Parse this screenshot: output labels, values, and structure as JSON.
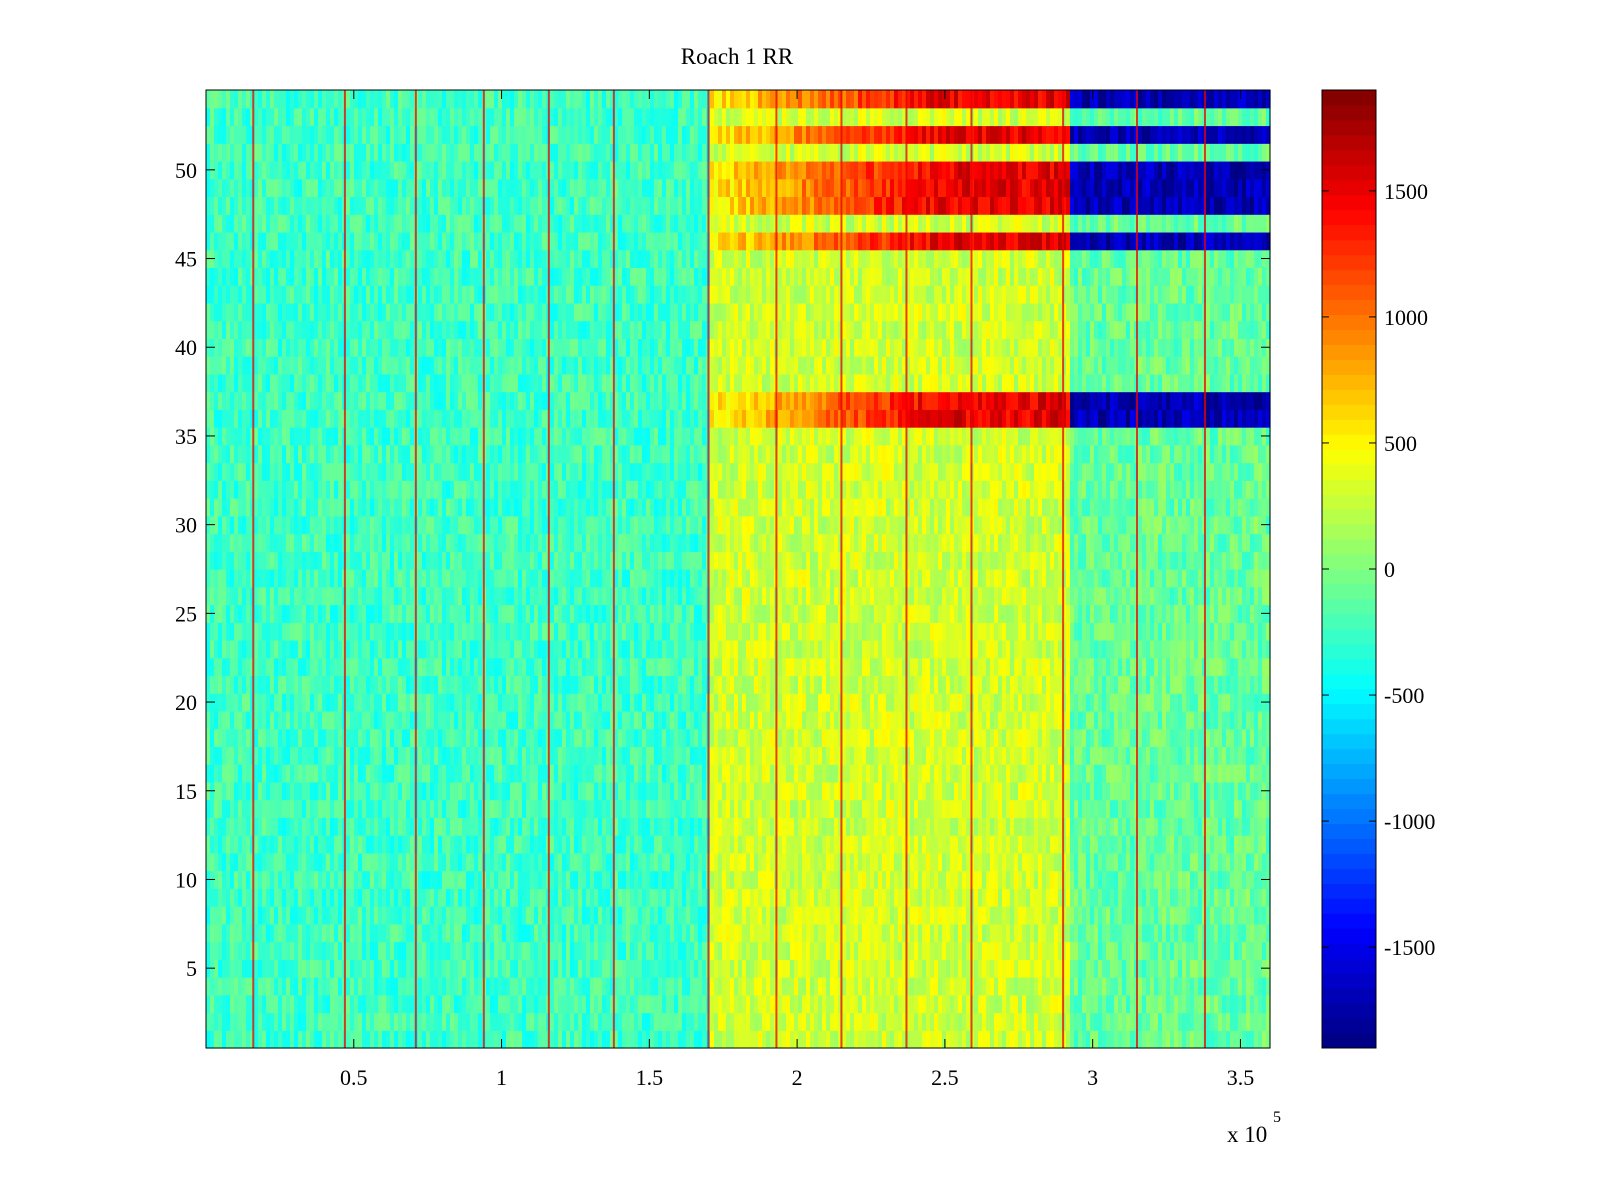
{
  "chart_data": {
    "type": "heatmap",
    "title": "Roach 1 RR",
    "xlabel": "",
    "ylabel": "",
    "x_exponent_label": {
      "base": "x 10",
      "exponent": "5"
    },
    "x_range": [
      0,
      360000
    ],
    "y_range": [
      0.5,
      54.5
    ],
    "colormap": "jet",
    "color_range": [
      -1900,
      1900
    ],
    "colorbar_ticks": [
      -1500,
      -1000,
      -500,
      0,
      500,
      1000,
      1500
    ],
    "colorbar_tick_labels": [
      "-1500",
      "-1000",
      "-500",
      "0",
      "500",
      "1000",
      "1500"
    ],
    "x_ticks": [
      50000,
      100000,
      150000,
      200000,
      250000,
      300000,
      350000
    ],
    "x_tick_labels": [
      "0.5",
      "1",
      "1.5",
      "2",
      "2.5",
      "3",
      "3.5"
    ],
    "y_ticks": [
      5,
      10,
      15,
      20,
      25,
      30,
      35,
      40,
      45,
      50
    ],
    "y_tick_labels": [
      "5",
      "10",
      "15",
      "20",
      "25",
      "30",
      "35",
      "40",
      "45",
      "50"
    ],
    "approx_time_blocks": [
      {
        "x_start": 0,
        "x_end": 170000,
        "typical_value": -250
      },
      {
        "x_start": 170000,
        "x_end": 292000,
        "typical_value": 300
      },
      {
        "x_start": 292000,
        "x_end": 360000,
        "typical_value": -100
      }
    ],
    "approx_high_rows": {
      "rows": [
        36,
        37,
        46,
        48,
        49,
        50,
        52,
        54
      ],
      "value_in_middle_block": 1500,
      "value_after_300000": -1700
    },
    "approx_vertical_spike_x": [
      16000,
      47000,
      71000,
      94000,
      116000,
      138000,
      170000,
      193000,
      215000,
      237000,
      259000,
      290000,
      315000,
      338000
    ]
  }
}
